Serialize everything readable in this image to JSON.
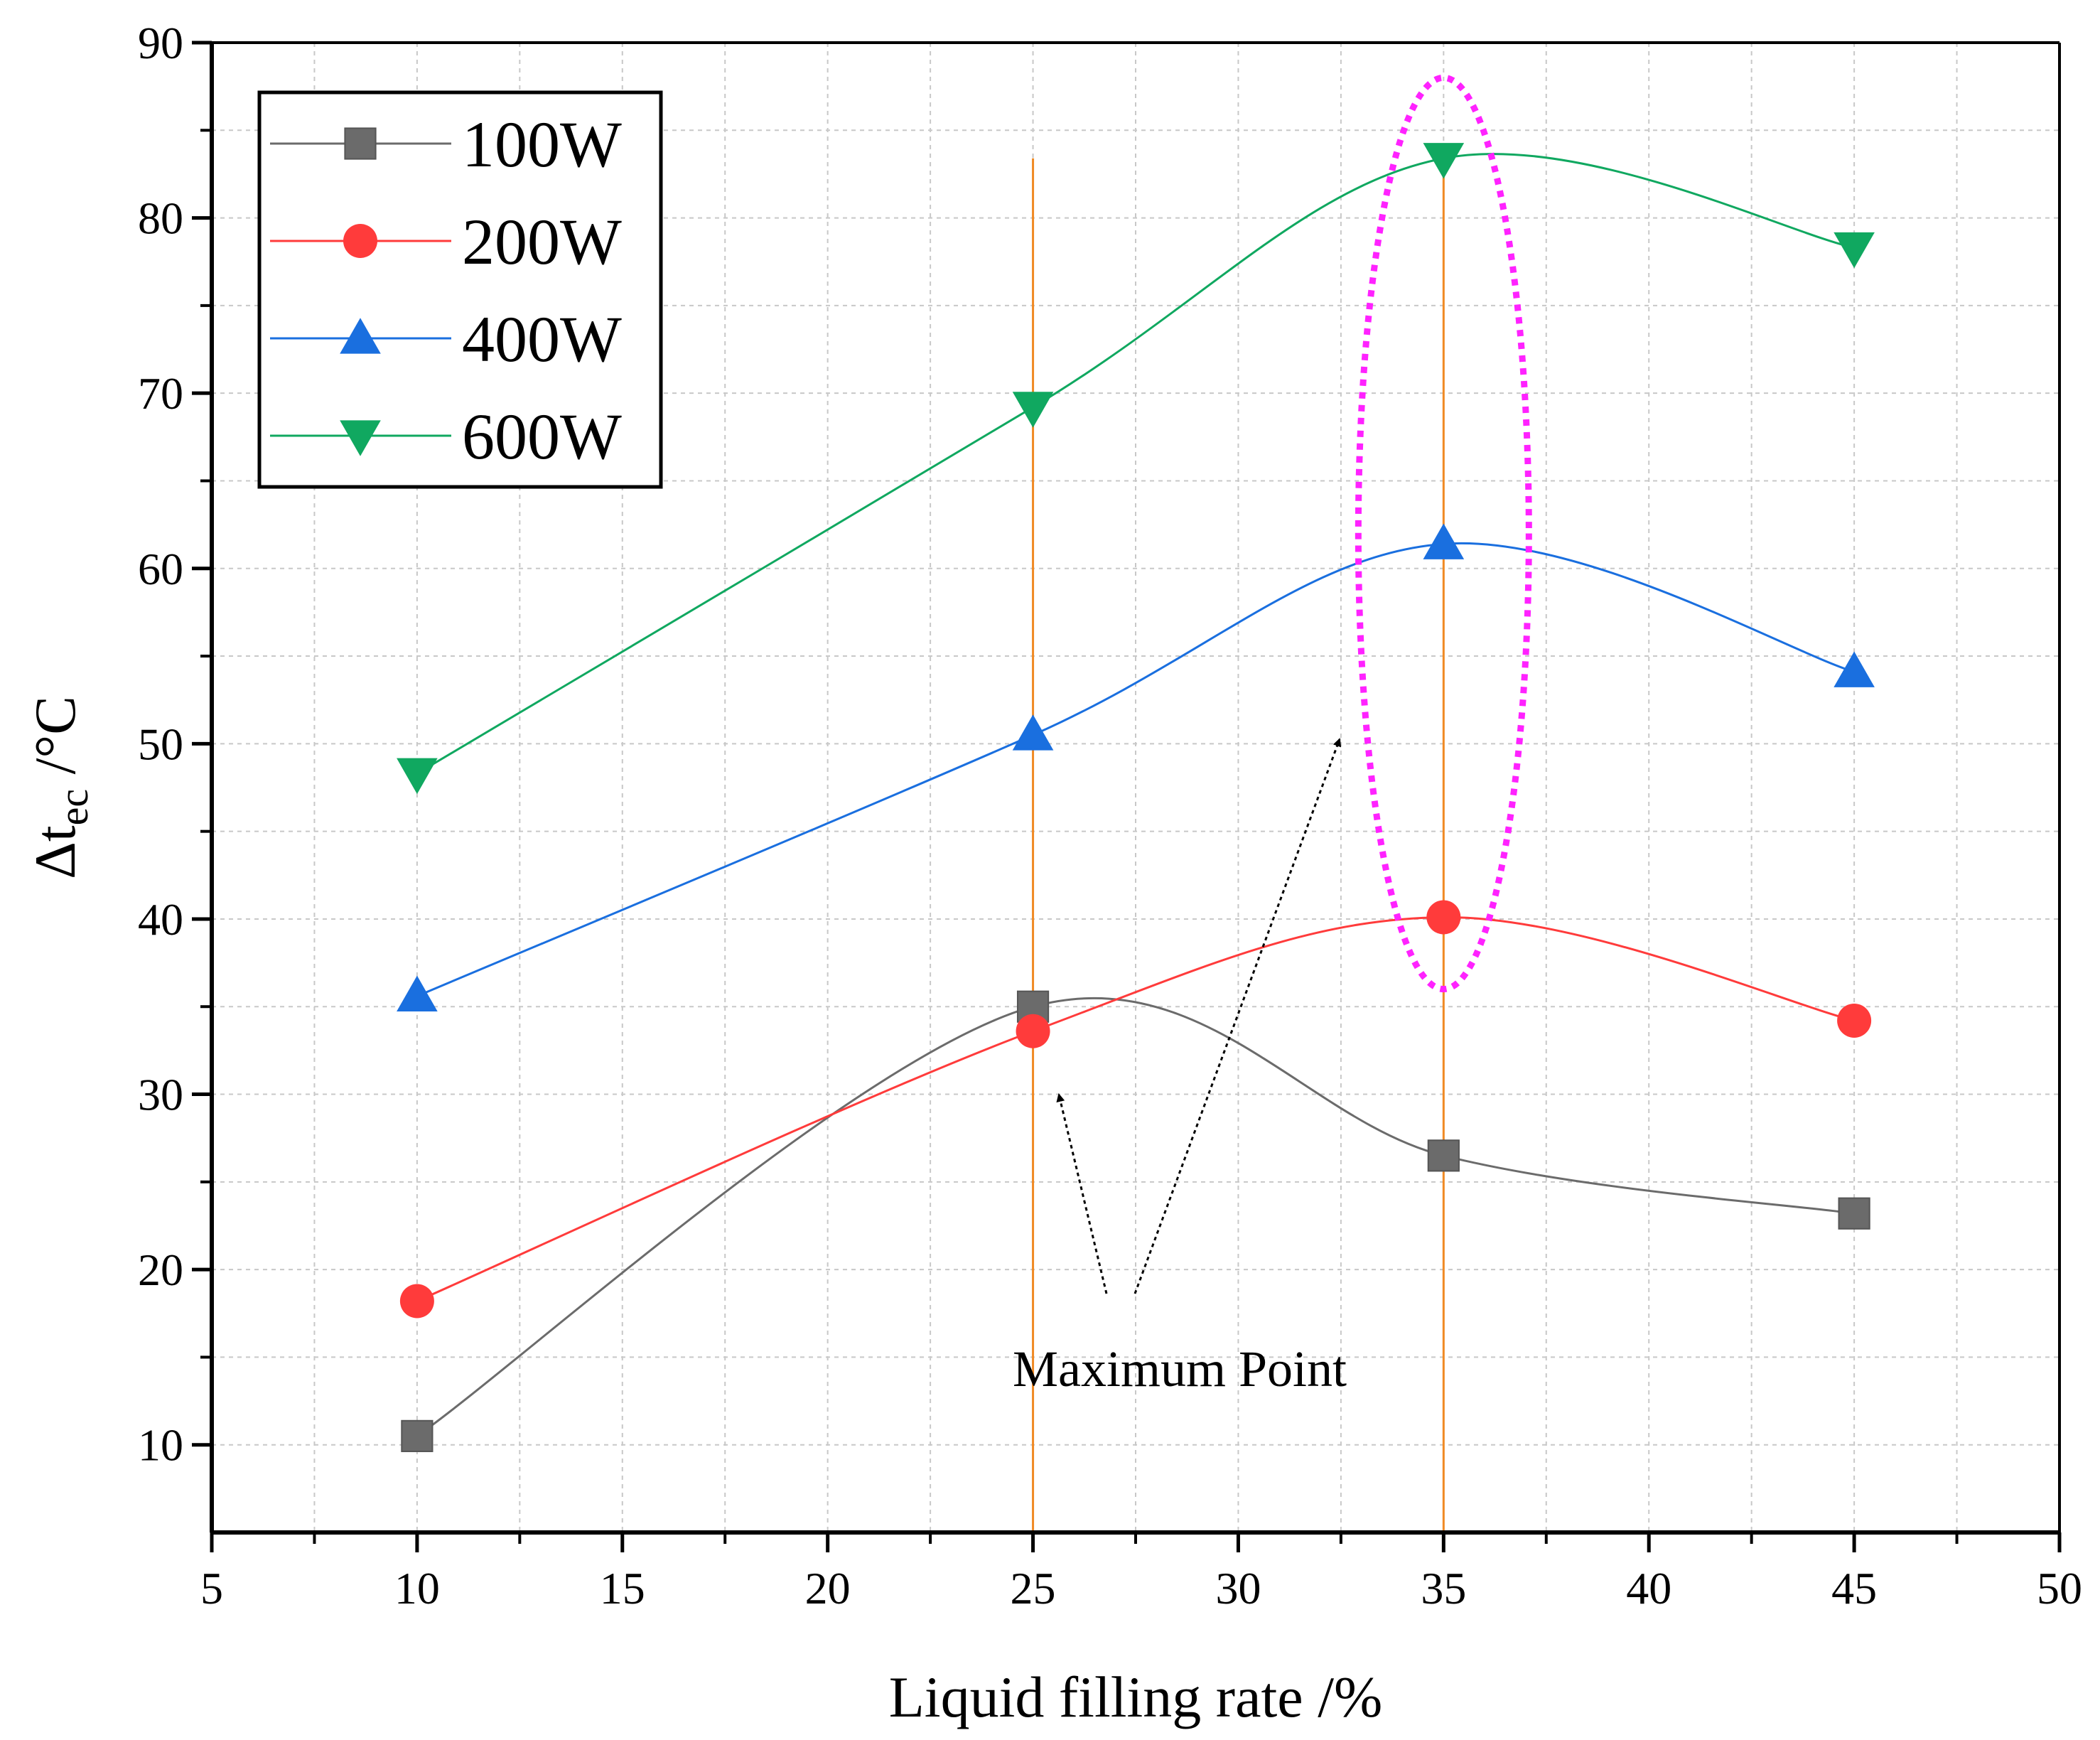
{
  "chart_data": {
    "type": "line",
    "title": "",
    "xlabel": "Liquid filling rate /%",
    "ylabel_main": "Δt",
    "ylabel_sub": "ec",
    "ylabel_unit": " /°C",
    "xlim": [
      5,
      50
    ],
    "ylim": [
      5,
      90
    ],
    "xticks": [
      5,
      10,
      15,
      20,
      25,
      30,
      35,
      40,
      45,
      50
    ],
    "yticks": [
      10,
      20,
      30,
      40,
      50,
      60,
      70,
      80,
      90
    ],
    "x": [
      10,
      25,
      35,
      45
    ],
    "series": [
      {
        "name": "100W",
        "values": [
          10.5,
          35.0,
          26.5,
          23.2
        ],
        "color": "#6b6b6b",
        "marker": "square"
      },
      {
        "name": "200W",
        "values": [
          18.2,
          33.6,
          40.1,
          34.2
        ],
        "color": "#ff3b3b",
        "marker": "circle"
      },
      {
        "name": "400W",
        "values": [
          35.6,
          50.5,
          61.4,
          54.1
        ],
        "color": "#1a6fdf",
        "marker": "triangle-up"
      },
      {
        "name": "600W",
        "values": [
          48.3,
          69.2,
          83.4,
          78.3
        ],
        "color": "#10a860",
        "marker": "triangle-down"
      }
    ],
    "grid": true,
    "legend_position": "top-left",
    "annotation": {
      "text": "Maximum Point",
      "reference_x": [
        25,
        35
      ],
      "reference_line_color": "#f08a24",
      "highlight_ellipse_color": "#ff22ff"
    }
  }
}
